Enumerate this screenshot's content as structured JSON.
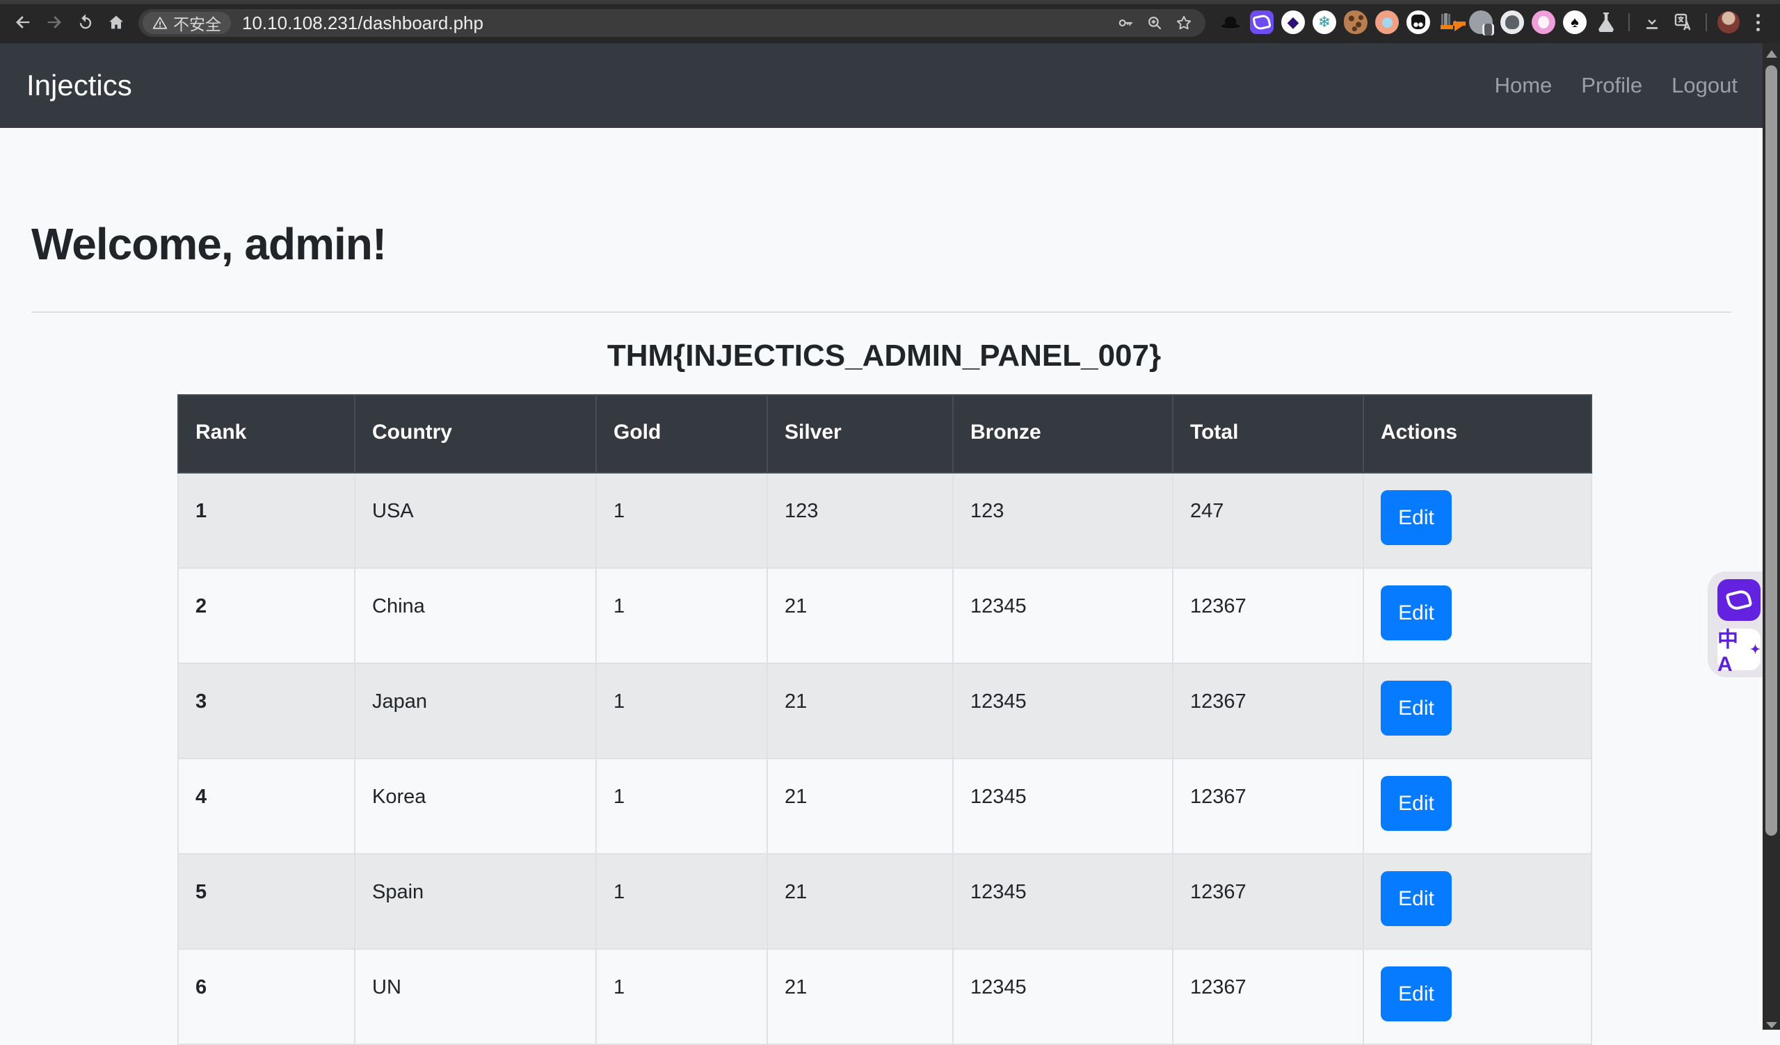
{
  "browser": {
    "security_chip": "不安全",
    "url": "10.10.108.231/dashboard.php",
    "extensions": [
      {
        "name": "fedora-hat-icon",
        "bg": "transparent",
        "glyph": "",
        "fg": "#0d0d0d"
      },
      {
        "name": "immersive-translate-icon",
        "bg": "#6d4df2",
        "glyph": "",
        "fg": "#ffffff"
      },
      {
        "name": "purple-diamond-icon",
        "bg": "#ffffff",
        "glyph": "◆",
        "fg": "#2d1070"
      },
      {
        "name": "snowflake-icon",
        "bg": "#ffffff",
        "glyph": "❄",
        "fg": "#2e9aa8"
      },
      {
        "name": "cookie-icon",
        "bg": "#bb7e51",
        "glyph": "",
        "fg": "#55351c"
      },
      {
        "name": "orange-ring-icon",
        "bg": "#f0a183",
        "glyph": "",
        "fg": "#a6d6ef"
      },
      {
        "name": "dark-mask-icon",
        "bg": "#ffffff",
        "glyph": "",
        "fg": "#141414"
      },
      {
        "name": "orange-arrow-icon",
        "bg": "transparent",
        "glyph": "",
        "fg": "#f07f13"
      },
      {
        "name": "paused-avatar-icon",
        "bg": "#9aa0a5",
        "glyph": "",
        "fg": "#565a5e"
      },
      {
        "name": "hoodie-avatar-icon",
        "bg": "#e8eaed",
        "glyph": "",
        "fg": "#5c6166"
      },
      {
        "name": "pink-avatar-icon",
        "bg": "#ef9ed9",
        "glyph": "",
        "fg": "#ffffff"
      },
      {
        "name": "spade-icon",
        "bg": "#ffffff",
        "glyph": "♠",
        "fg": "#0b0b0b"
      },
      {
        "name": "flask-icon",
        "bg": "transparent",
        "glyph": "",
        "fg": "#cfd1d3"
      }
    ]
  },
  "navbar": {
    "brand": "Injectics",
    "links": [
      {
        "name": "nav-link-home",
        "label": "Home"
      },
      {
        "name": "nav-link-profile",
        "label": "Profile"
      },
      {
        "name": "nav-link-logout",
        "label": "Logout"
      }
    ]
  },
  "page": {
    "heading": "Welcome, admin!",
    "table_title": "THM{INJECTICS_ADMIN_PANEL_007}"
  },
  "table": {
    "headers": [
      "Rank",
      "Country",
      "Gold",
      "Silver",
      "Bronze",
      "Total",
      "Actions"
    ],
    "rows": [
      {
        "rank": "1",
        "country": "USA",
        "gold": "1",
        "silver": "123",
        "bronze": "123",
        "total": "247",
        "action": "Edit"
      },
      {
        "rank": "2",
        "country": "China",
        "gold": "1",
        "silver": "21",
        "bronze": "12345",
        "total": "12367",
        "action": "Edit"
      },
      {
        "rank": "3",
        "country": "Japan",
        "gold": "1",
        "silver": "21",
        "bronze": "12345",
        "total": "12367",
        "action": "Edit"
      },
      {
        "rank": "4",
        "country": "Korea",
        "gold": "1",
        "silver": "21",
        "bronze": "12345",
        "total": "12367",
        "action": "Edit"
      },
      {
        "rank": "5",
        "country": "Spain",
        "gold": "1",
        "silver": "21",
        "bronze": "12345",
        "total": "12367",
        "action": "Edit"
      },
      {
        "rank": "6",
        "country": "UN",
        "gold": "1",
        "silver": "21",
        "bronze": "12345",
        "total": "12367",
        "action": "Edit"
      }
    ]
  },
  "colors": {
    "primary": "#077bff",
    "navbar_bg": "#343a40",
    "table_header_bg": "#343a40",
    "stripe_row": "#e7e9eb",
    "page_bg": "#f8f9fa"
  }
}
